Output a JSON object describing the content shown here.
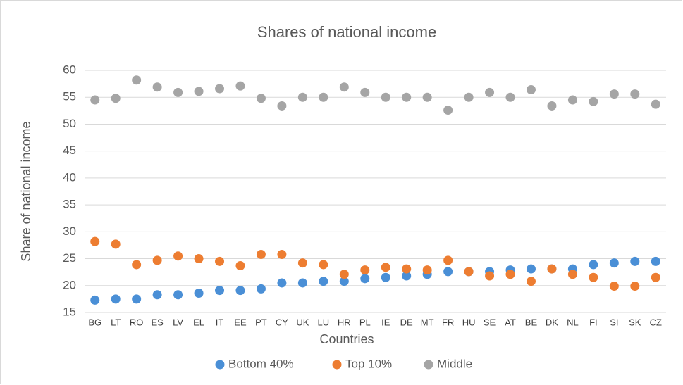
{
  "chart_data": {
    "type": "scatter",
    "title": "Shares of national income",
    "x_label": "Countries",
    "y_label": "Share of national income",
    "categories": [
      "BG",
      "LT",
      "RO",
      "ES",
      "LV",
      "EL",
      "IT",
      "EE",
      "PT",
      "CY",
      "UK",
      "LU",
      "HR",
      "PL",
      "IE",
      "DE",
      "MT",
      "FR",
      "HU",
      "SE",
      "AT",
      "BE",
      "DK",
      "NL",
      "FI",
      "SI",
      "SK",
      "CZ"
    ],
    "series": [
      {
        "name": "Bottom 40%",
        "color": "#4a8fd6",
        "values": [
          17.3,
          17.5,
          17.5,
          18.3,
          18.3,
          18.6,
          19.1,
          19.1,
          19.4,
          20.5,
          20.5,
          20.8,
          20.8,
          21.3,
          21.5,
          21.8,
          22.1,
          22.6,
          22.6,
          22.6,
          22.9,
          23.1,
          23.1,
          23.1,
          23.9,
          24.2,
          24.5,
          24.5
        ]
      },
      {
        "name": "Top 10%",
        "color": "#ed7d31",
        "values": [
          28.2,
          27.7,
          23.9,
          24.7,
          25.5,
          25.0,
          24.5,
          23.7,
          25.8,
          25.8,
          24.2,
          23.9,
          22.1,
          22.9,
          23.4,
          23.1,
          22.9,
          24.7,
          22.6,
          21.8,
          22.1,
          20.8,
          23.1,
          22.1,
          21.5,
          19.9,
          19.9,
          21.5
        ]
      },
      {
        "name": "Middle",
        "color": "#a5a5a5",
        "values": [
          54.5,
          54.8,
          58.2,
          56.9,
          55.9,
          56.1,
          56.6,
          57.1,
          54.8,
          53.4,
          55.0,
          55.0,
          56.9,
          55.9,
          55.0,
          55.0,
          55.0,
          52.6,
          55.0,
          55.9,
          55.0,
          56.4,
          53.4,
          54.5,
          54.2,
          55.6,
          55.6,
          53.7
        ]
      }
    ],
    "ylim": [
      15,
      60
    ],
    "yticks": [
      15,
      20,
      25,
      30,
      35,
      40,
      45,
      50,
      55,
      60
    ],
    "grid": true,
    "legend": "bottom"
  }
}
